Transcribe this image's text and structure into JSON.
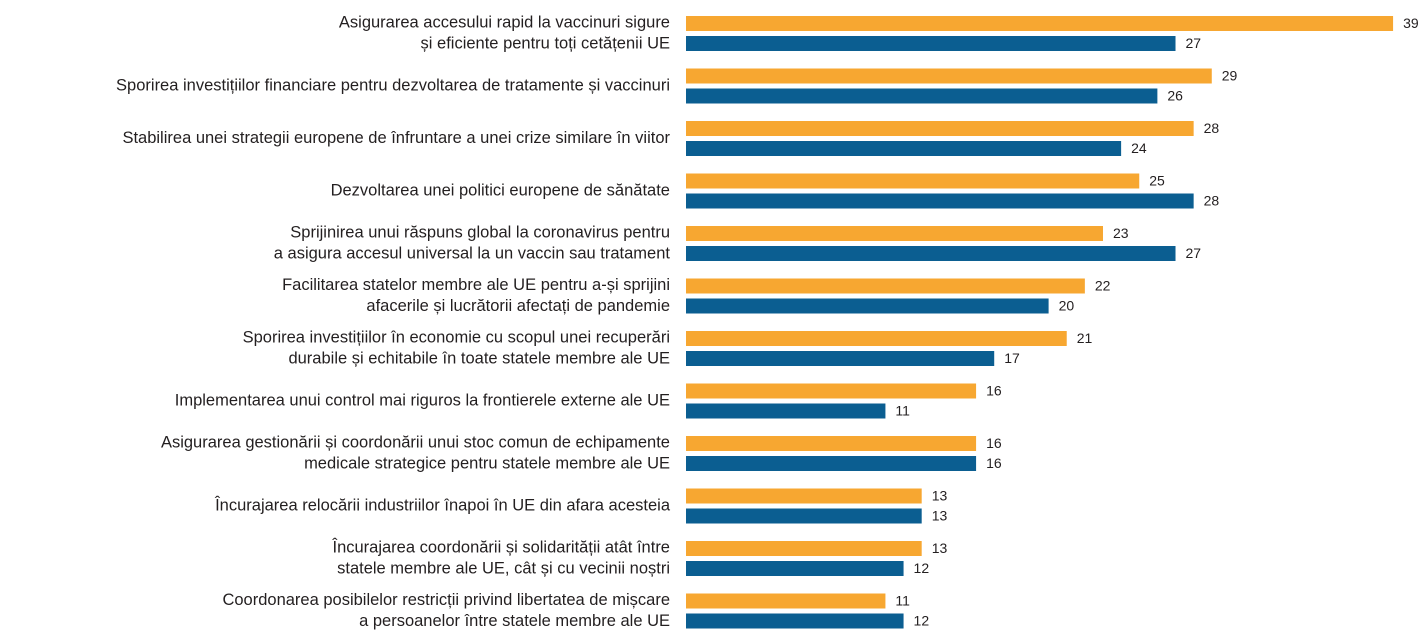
{
  "chart_data": {
    "type": "bar",
    "orientation": "horizontal",
    "categories": [
      [
        "Asigurarea accesului rapid la vaccinuri sigure",
        "și eficiente pentru toți cetățenii UE"
      ],
      [
        "Sporirea investițiilor financiare pentru dezvoltarea de tratamente și vaccinuri"
      ],
      [
        "Stabilirea unei strategii europene de înfruntare a unei crize similare în viitor"
      ],
      [
        "Dezvoltarea unei politici europene de sănătate"
      ],
      [
        "Sprijinirea unui răspuns global la coronavirus pentru",
        "a asigura accesul universal la un vaccin sau tratament"
      ],
      [
        "Facilitarea statelor membre ale UE pentru a-și sprijini",
        "afacerile și lucrătorii afectați de pandemie"
      ],
      [
        "Sporirea investițiilor în economie cu scopul unei recuperări",
        "durabile și echitabile în toate statele membre ale UE"
      ],
      [
        "Implementarea unui control mai riguros la frontierele externe ale UE"
      ],
      [
        "Asigurarea gestionării și coordonării unui stoc comun de echipamente",
        "medicale strategice pentru statele membre ale UE"
      ],
      [
        "Încurajarea relocării industriilor înapoi în UE din afara acesteia"
      ],
      [
        "Încurajarea coordonării și solidarității atât între",
        "statele membre ale UE, cât și cu vecinii noștri"
      ],
      [
        "Coordonarea posibilelor restricții privind libertatea de mișcare",
        "a persoanelor între statele membre ale UE"
      ]
    ],
    "series": [
      {
        "color": "#f7a731",
        "values": [
          39,
          29,
          28,
          25,
          23,
          22,
          21,
          16,
          16,
          13,
          13,
          11
        ]
      },
      {
        "color": "#0b5e91",
        "values": [
          27,
          26,
          24,
          28,
          27,
          20,
          17,
          11,
          16,
          13,
          12,
          12
        ]
      }
    ]
  }
}
